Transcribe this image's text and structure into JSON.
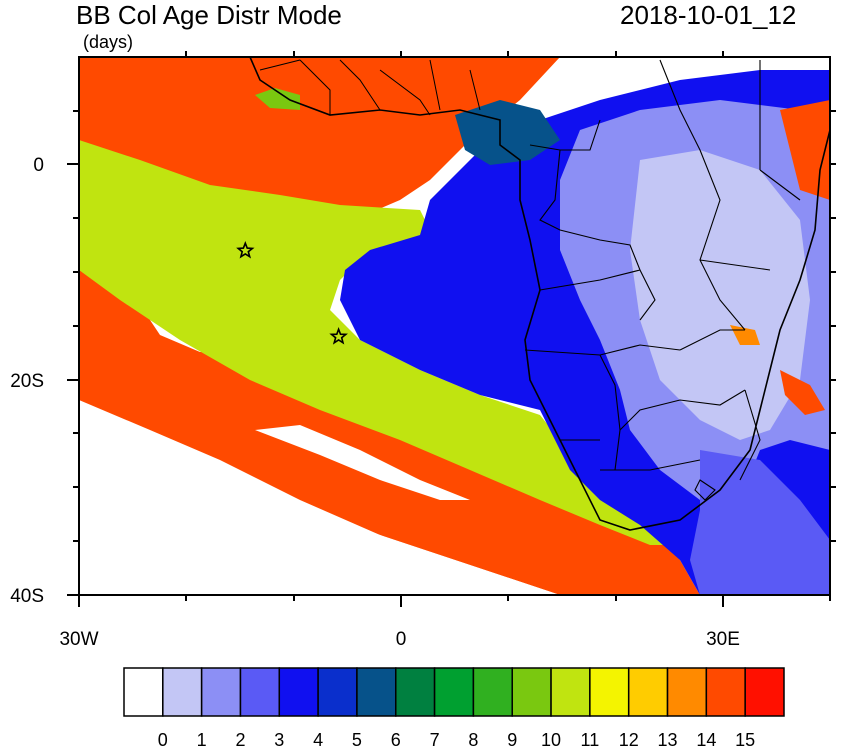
{
  "header": {
    "title": "BB Col Age Distr Mode",
    "units": "(days)",
    "timestamp": "2018-10-01_12"
  },
  "axes": {
    "x_ticks": [
      {
        "value": -30,
        "label": "30W"
      },
      {
        "value": 0,
        "label": "0"
      },
      {
        "value": 30,
        "label": "30E"
      }
    ],
    "y_ticks": [
      {
        "value": 0,
        "label": "0"
      },
      {
        "value": -20,
        "label": "20S"
      },
      {
        "value": -40,
        "label": "40S"
      }
    ],
    "lon_range": [
      -30,
      40
    ],
    "lat_range": [
      -40,
      10
    ]
  },
  "markers": [
    {
      "type": "star",
      "lon": -14.5,
      "lat": -8
    },
    {
      "type": "star",
      "lon": -5.8,
      "lat": -16
    }
  ],
  "colorbar": {
    "labels": [
      "0",
      "1",
      "2",
      "3",
      "4",
      "5",
      "6",
      "7",
      "8",
      "9",
      "10",
      "11",
      "12",
      "13",
      "14",
      "15"
    ],
    "colors": [
      "#ffffff",
      "#c3c6f5",
      "#8c8ff5",
      "#5a5af5",
      "#1010f0",
      "#0a2fcc",
      "#06528a",
      "#008040",
      "#00a030",
      "#30b020",
      "#7ac810",
      "#c0e410",
      "#f4f400",
      "#ffcc00",
      "#ff8a00",
      "#ff4a00",
      "#ff1000"
    ]
  }
}
